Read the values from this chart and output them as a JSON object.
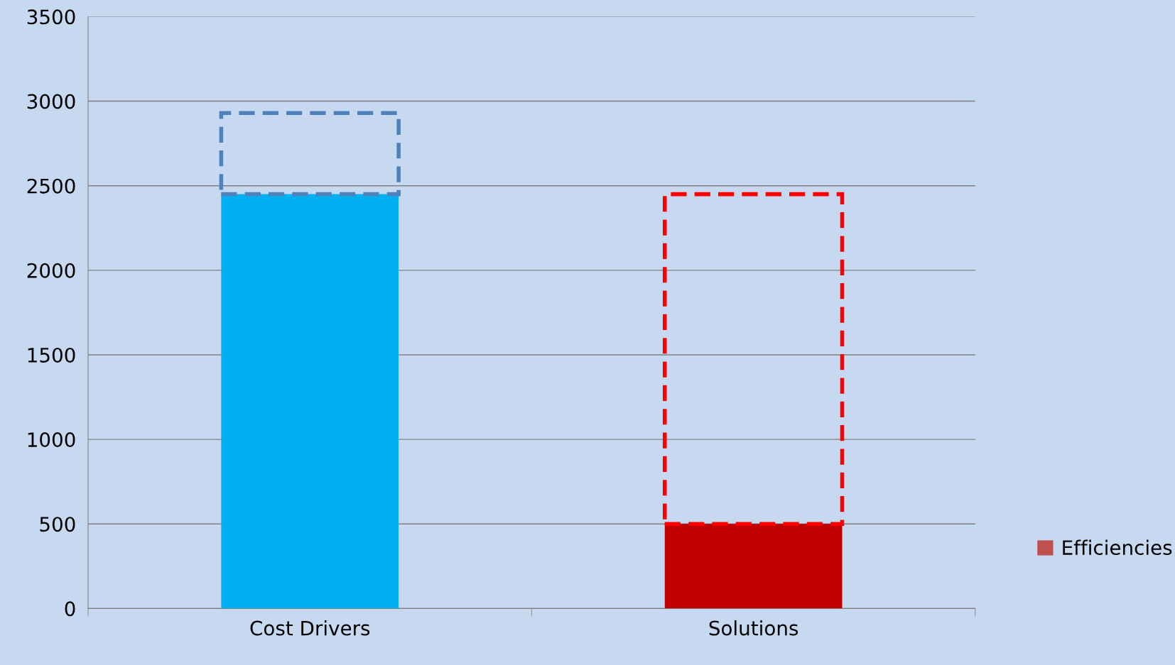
{
  "chart_data": {
    "type": "bar",
    "stacked": true,
    "categories": [
      "Cost Drivers",
      "Solutions"
    ],
    "series": [
      {
        "colors": [
          "#00b0f0",
          "#c00000"
        ],
        "values": [
          2450,
          500
        ]
      },
      {
        "name": "Efficiencies",
        "color": "#c0504d",
        "colors": [
          "#4f81bd",
          "#ff0000"
        ],
        "line_style": "dashed",
        "values": [
          480,
          1950
        ]
      }
    ],
    "ylim": [
      0,
      3500
    ],
    "yticks": [
      0,
      500,
      1000,
      1500,
      2000,
      2500,
      3000,
      3500
    ],
    "grid": "y",
    "legend": "right"
  }
}
